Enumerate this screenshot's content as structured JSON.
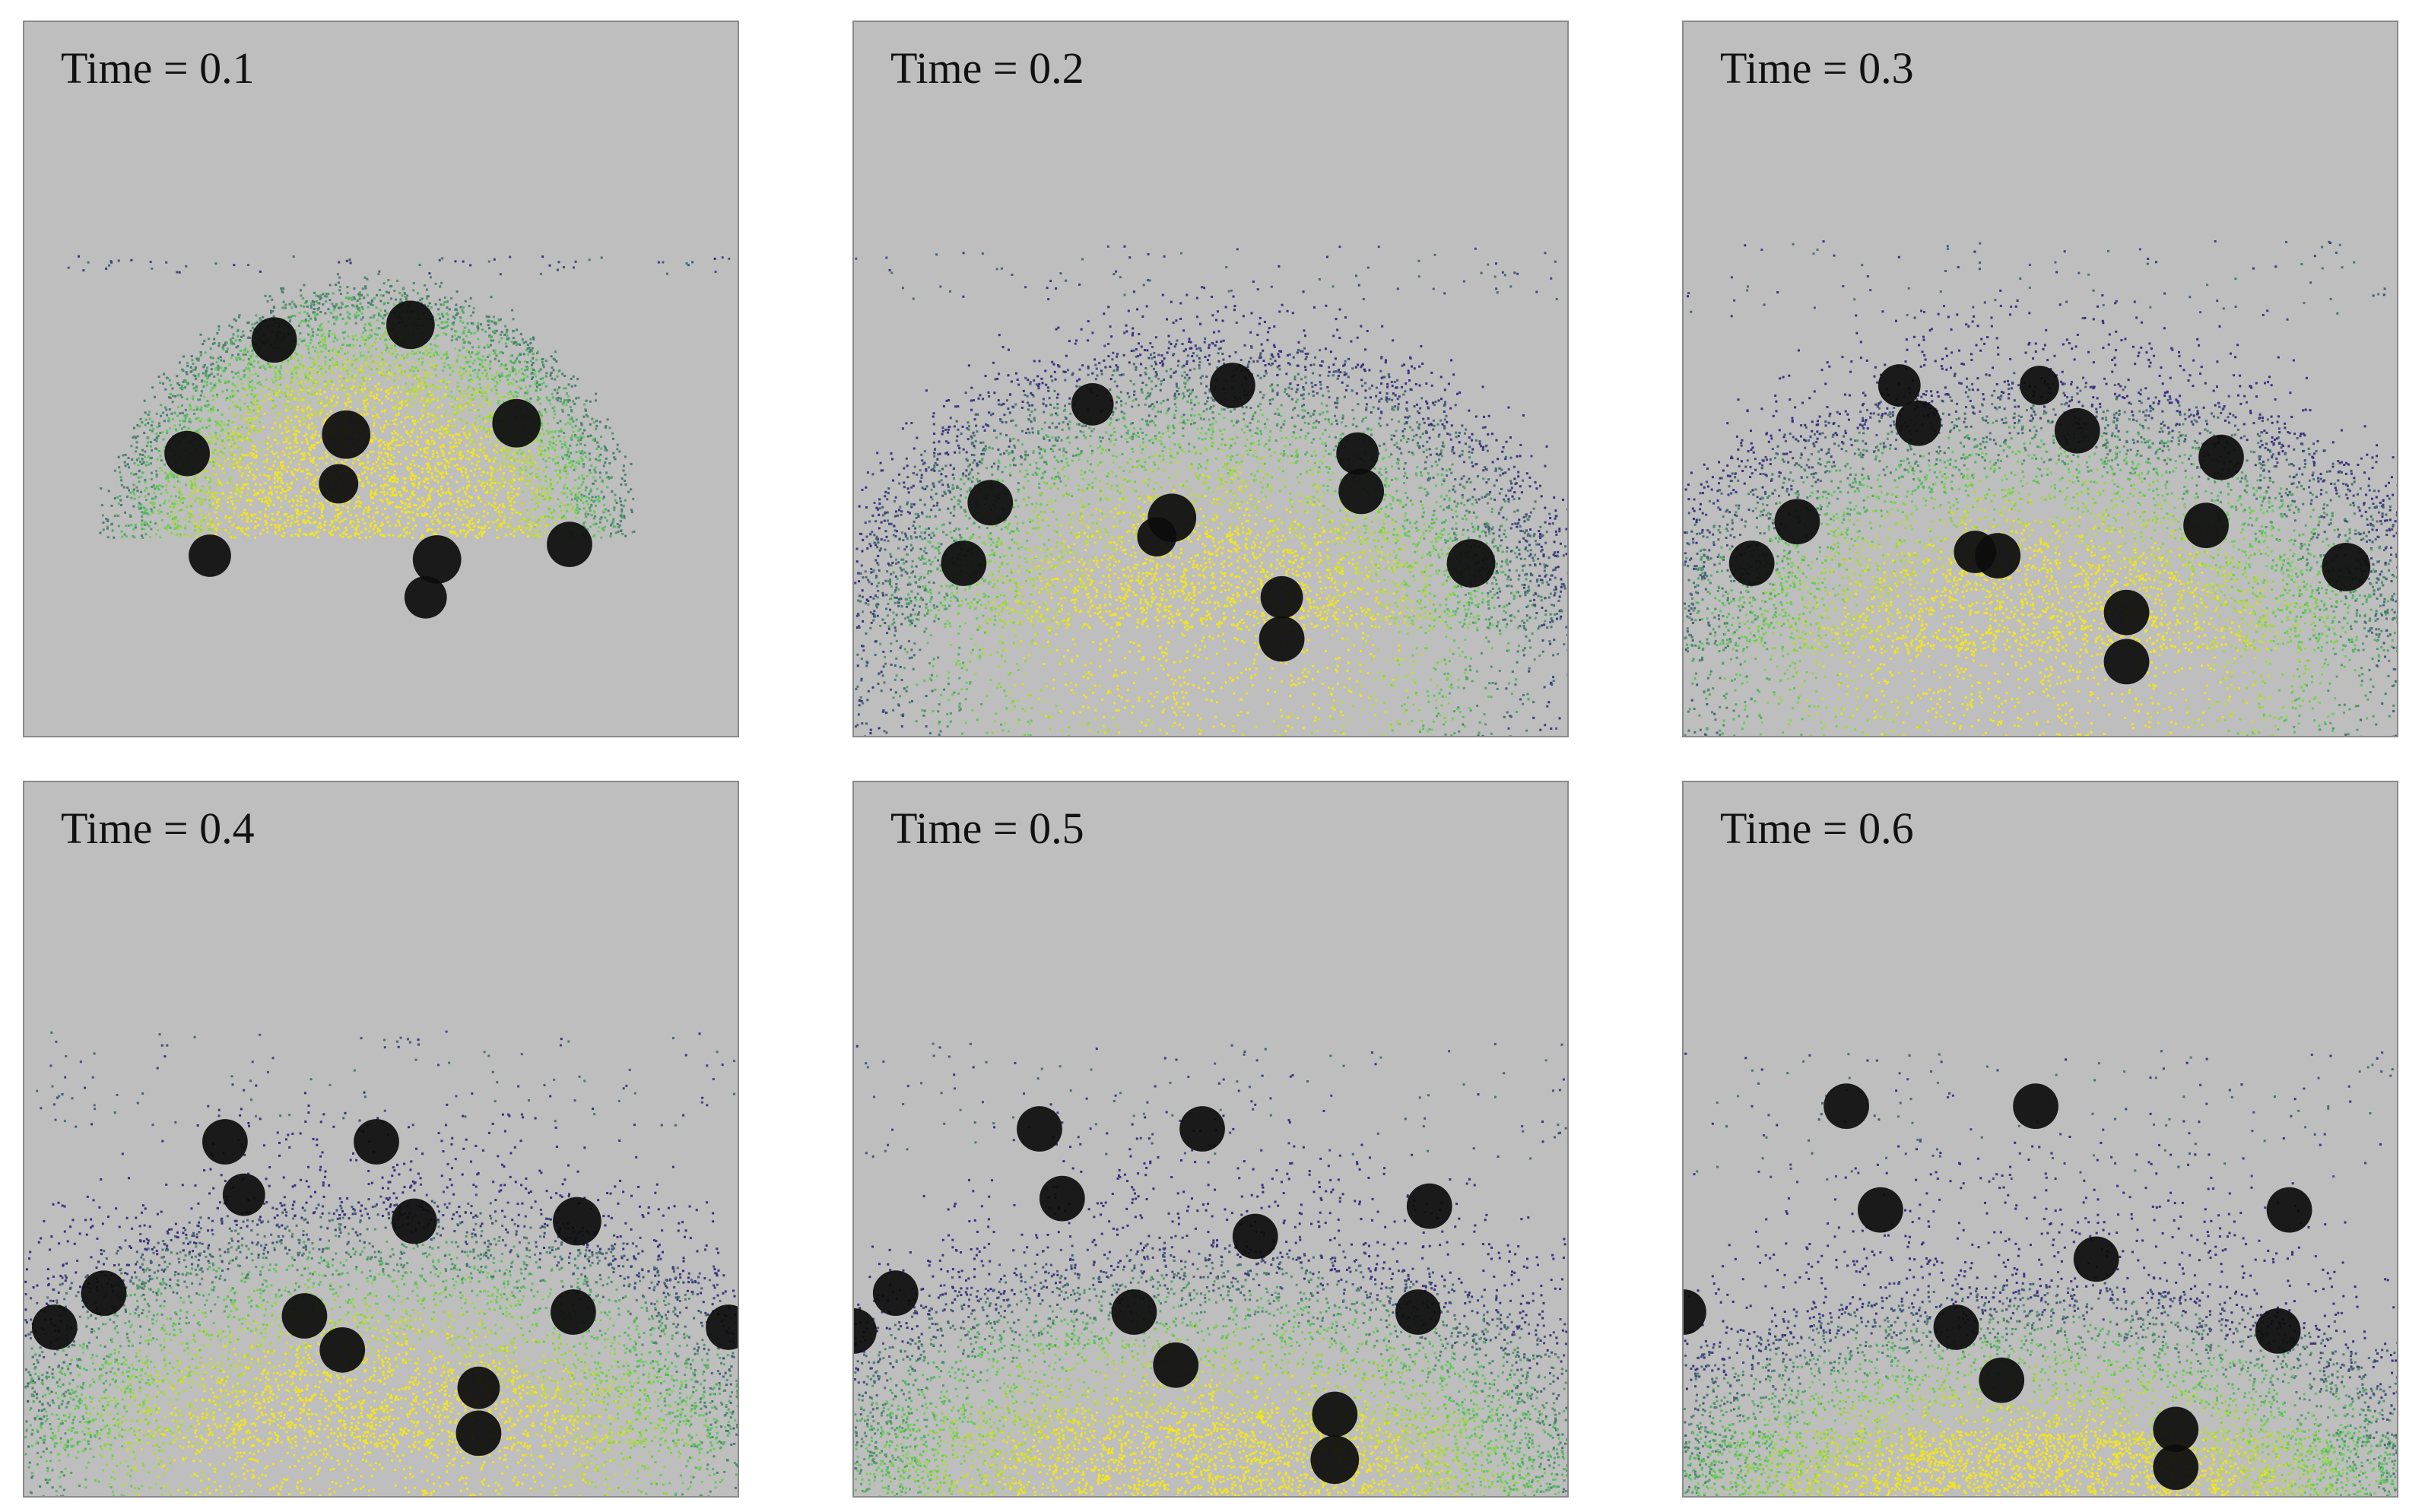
{
  "figure": {
    "panels": [
      {
        "label": "Time = 0.1",
        "time": 0.1
      },
      {
        "label": "Time = 0.2",
        "time": 0.2
      },
      {
        "label": "Time = 0.3",
        "time": 0.3
      },
      {
        "label": "Time = 0.4",
        "time": 0.4
      },
      {
        "label": "Time = 0.5",
        "time": 0.5
      },
      {
        "label": "Time = 0.6",
        "time": 0.6
      }
    ],
    "colors": {
      "background": "#bebebe",
      "sphere": "#0c0c0c",
      "particle_high": "#f3e51e",
      "particle_mid": "#5ec962",
      "particle_low": "#3b2f80"
    }
  }
}
